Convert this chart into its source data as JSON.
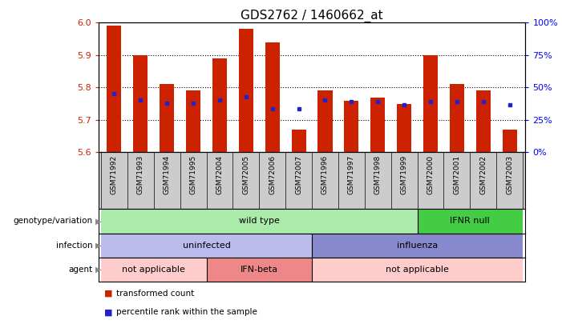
{
  "title": "GDS2762 / 1460662_at",
  "samples": [
    "GSM71992",
    "GSM71993",
    "GSM71994",
    "GSM71995",
    "GSM72004",
    "GSM72005",
    "GSM72006",
    "GSM72007",
    "GSM71996",
    "GSM71997",
    "GSM71998",
    "GSM71999",
    "GSM72000",
    "GSM72001",
    "GSM72002",
    "GSM72003"
  ],
  "bar_values": [
    5.99,
    5.9,
    5.81,
    5.79,
    5.89,
    5.98,
    5.94,
    5.67,
    5.79,
    5.76,
    5.77,
    5.75,
    5.9,
    5.81,
    5.79,
    5.67
  ],
  "percentile_values": [
    5.78,
    5.762,
    5.752,
    5.752,
    5.762,
    5.772,
    5.735,
    5.735,
    5.762,
    5.757,
    5.757,
    5.747,
    5.757,
    5.757,
    5.757,
    5.747
  ],
  "ymin": 5.6,
  "ymax": 6.0,
  "yticks": [
    5.6,
    5.7,
    5.8,
    5.9,
    6.0
  ],
  "right_yticks_pct": [
    0,
    25,
    50,
    75,
    100
  ],
  "bar_color": "#cc2200",
  "dot_color": "#2222cc",
  "genotype_wt_color": "#aaeaaa",
  "genotype_ifnr_color": "#44cc44",
  "infection_uninfected_color": "#bbbbee",
  "infection_influenza_color": "#8888cc",
  "agent_na_color": "#ffcccc",
  "agent_ifnbeta_color": "#ee8888",
  "title_fontsize": 11,
  "annotation_fontsize": 8,
  "sample_fontsize": 6.5,
  "legend_fontsize": 7.5,
  "wt_count": 12,
  "ifnr_count": 4,
  "uninf_count": 8,
  "inf_count": 8,
  "na1_count": 4,
  "ifnbeta_count": 4,
  "na2_count": 8
}
